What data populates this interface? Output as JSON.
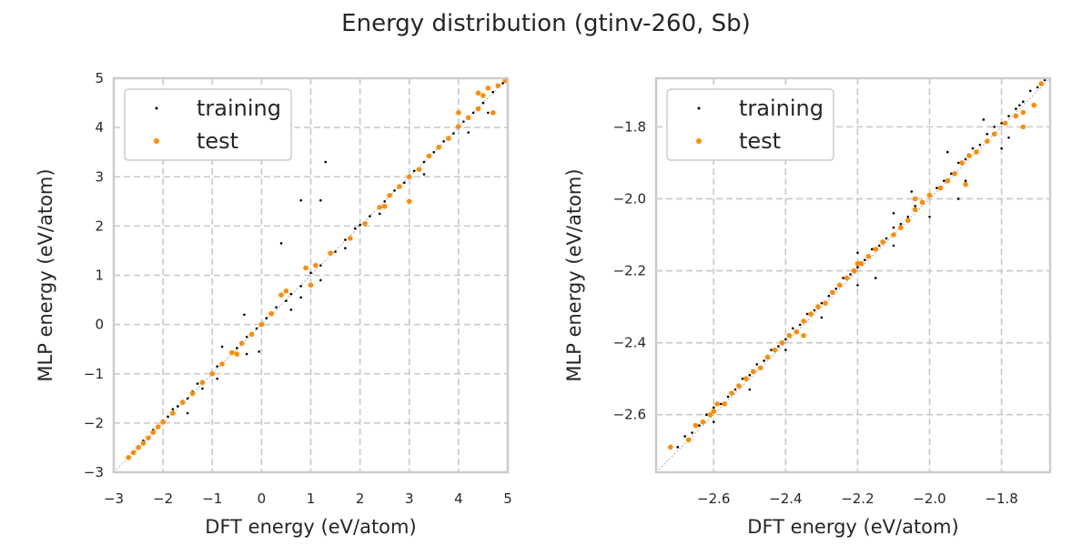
{
  "figure": {
    "title": "Energy distribution (gtinv-260, Sb)"
  },
  "colors": {
    "training": "#000000",
    "test": "#ff8c00",
    "grid": "#c8c8c8",
    "frame": "#cccccc",
    "diagonal": "#9a9a9a"
  },
  "chart_data": [
    {
      "type": "scatter",
      "xlabel": "DFT energy (eV/atom)",
      "ylabel": "MLP energy (eV/atom)",
      "xlim": [
        -3,
        5
      ],
      "ylim": [
        -3,
        5
      ],
      "xticks": [
        -3,
        -2,
        -1,
        0,
        1,
        2,
        3,
        4,
        5
      ],
      "yticks": [
        -3,
        -2,
        -1,
        0,
        1,
        2,
        3,
        4,
        5
      ],
      "tick_labels_x": [
        "−3",
        "−2",
        "−1",
        "0",
        "1",
        "2",
        "3",
        "4",
        "5"
      ],
      "tick_labels_y": [
        "−3",
        "−2",
        "−1",
        "0",
        "1",
        "2",
        "3",
        "4",
        "5"
      ],
      "grid": true,
      "legend": "top-left",
      "series": [
        {
          "name": "training",
          "points": [
            [
              -2.7,
              -2.69
            ],
            [
              -2.6,
              -2.58
            ],
            [
              -2.5,
              -2.47
            ],
            [
              -2.4,
              -2.36
            ],
            [
              -2.3,
              -2.28
            ],
            [
              -2.2,
              -2.14
            ],
            [
              -2.1,
              -2.06
            ],
            [
              -2.0,
              -1.95
            ],
            [
              -1.9,
              -1.87
            ],
            [
              -1.8,
              -1.72
            ],
            [
              -1.7,
              -1.66
            ],
            [
              -1.6,
              -1.55
            ],
            [
              -1.5,
              -1.5
            ],
            [
              -1.4,
              -1.36
            ],
            [
              -1.3,
              -1.2
            ],
            [
              -1.2,
              -1.15
            ],
            [
              -1.0,
              -0.98
            ],
            [
              -0.9,
              -0.85
            ],
            [
              -0.8,
              -0.78
            ],
            [
              -0.6,
              -0.55
            ],
            [
              -0.5,
              -0.48
            ],
            [
              -0.3,
              -0.25
            ],
            [
              -0.2,
              -0.18
            ],
            [
              -0.1,
              -0.08
            ],
            [
              0.0,
              0.02
            ],
            [
              0.1,
              0.13
            ],
            [
              0.2,
              0.22
            ],
            [
              0.3,
              0.35
            ],
            [
              0.5,
              0.48
            ],
            [
              0.6,
              0.62
            ],
            [
              0.8,
              0.78
            ],
            [
              1.0,
              1.05
            ],
            [
              1.2,
              1.2
            ],
            [
              1.5,
              1.48
            ],
            [
              1.7,
              1.72
            ],
            [
              1.9,
              1.95
            ],
            [
              2.0,
              2.02
            ],
            [
              2.2,
              2.2
            ],
            [
              2.5,
              2.5
            ],
            [
              2.7,
              2.72
            ],
            [
              2.9,
              2.88
            ],
            [
              3.1,
              3.12
            ],
            [
              3.3,
              3.3
            ],
            [
              3.5,
              3.5
            ],
            [
              3.7,
              3.72
            ],
            [
              3.9,
              3.88
            ],
            [
              4.1,
              4.12
            ],
            [
              4.3,
              4.3
            ],
            [
              4.5,
              4.5
            ],
            [
              4.7,
              4.72
            ],
            [
              4.9,
              4.9
            ],
            [
              -1.5,
              -1.8
            ],
            [
              -0.9,
              -1.1
            ],
            [
              -0.3,
              -0.6
            ],
            [
              0.8,
              0.55
            ],
            [
              1.2,
              0.9
            ],
            [
              -0.05,
              -0.55
            ],
            [
              0.4,
              1.65
            ],
            [
              0.8,
              2.52
            ],
            [
              1.2,
              2.52
            ],
            [
              1.3,
              3.3
            ],
            [
              -0.35,
              0.2
            ],
            [
              -0.8,
              -0.45
            ],
            [
              1.7,
              1.55
            ],
            [
              2.4,
              2.25
            ],
            [
              3.3,
              3.05
            ],
            [
              4.2,
              3.9
            ],
            [
              4.6,
              4.3
            ],
            [
              -1.2,
              -1.3
            ],
            [
              0.6,
              0.3
            ]
          ]
        },
        {
          "name": "test",
          "points": [
            [
              -2.7,
              -2.7
            ],
            [
              -2.6,
              -2.6
            ],
            [
              -2.5,
              -2.5
            ],
            [
              -2.4,
              -2.41
            ],
            [
              -2.3,
              -2.3
            ],
            [
              -2.2,
              -2.19
            ],
            [
              -2.1,
              -2.08
            ],
            [
              -2.0,
              -1.98
            ],
            [
              -1.8,
              -1.8
            ],
            [
              -1.6,
              -1.58
            ],
            [
              -1.4,
              -1.4
            ],
            [
              -1.2,
              -1.18
            ],
            [
              -1.0,
              -1.0
            ],
            [
              -0.8,
              -0.8
            ],
            [
              -0.6,
              -0.57
            ],
            [
              -0.4,
              -0.38
            ],
            [
              -0.2,
              -0.2
            ],
            [
              0.0,
              0.0
            ],
            [
              0.2,
              0.22
            ],
            [
              0.4,
              0.6
            ],
            [
              0.5,
              0.68
            ],
            [
              0.9,
              1.15
            ],
            [
              1.1,
              1.2
            ],
            [
              1.4,
              1.45
            ],
            [
              1.8,
              1.75
            ],
            [
              2.1,
              2.05
            ],
            [
              2.4,
              2.38
            ],
            [
              2.6,
              2.62
            ],
            [
              2.8,
              2.8
            ],
            [
              3.0,
              3.0
            ],
            [
              3.2,
              3.15
            ],
            [
              3.4,
              3.42
            ],
            [
              3.6,
              3.6
            ],
            [
              3.8,
              3.78
            ],
            [
              4.0,
              4.02
            ],
            [
              4.0,
              4.3
            ],
            [
              4.2,
              4.2
            ],
            [
              4.4,
              4.38
            ],
            [
              4.5,
              4.65
            ],
            [
              4.6,
              4.8
            ],
            [
              4.7,
              4.3
            ],
            [
              4.8,
              4.85
            ],
            [
              4.95,
              4.95
            ],
            [
              -0.5,
              -0.6
            ],
            [
              1.0,
              0.8
            ],
            [
              2.5,
              2.4
            ],
            [
              3.0,
              2.5
            ],
            [
              4.4,
              4.7
            ]
          ]
        }
      ]
    },
    {
      "type": "scatter",
      "xlabel": "DFT energy (eV/atom)",
      "ylabel": "MLP energy (eV/atom)",
      "xlim": [
        -2.76,
        -1.665
      ],
      "ylim": [
        -2.76,
        -1.665
      ],
      "xticks": [
        -2.6,
        -2.4,
        -2.2,
        -2.0,
        -1.8
      ],
      "yticks": [
        -2.6,
        -2.4,
        -2.2,
        -2.0,
        -1.8
      ],
      "tick_labels_x": [
        "−2.6",
        "−2.4",
        "−2.2",
        "−2.0",
        "−1.8"
      ],
      "tick_labels_y": [
        "−2.6",
        "−2.4",
        "−2.2",
        "−2.0",
        "−1.8"
      ],
      "grid": true,
      "legend": "top-left",
      "series": [
        {
          "name": "training",
          "points": [
            [
              -2.7,
              -2.69
            ],
            [
              -2.68,
              -2.66
            ],
            [
              -2.66,
              -2.65
            ],
            [
              -2.64,
              -2.63
            ],
            [
              -2.62,
              -2.6
            ],
            [
              -2.6,
              -2.58
            ],
            [
              -2.58,
              -2.57
            ],
            [
              -2.56,
              -2.55
            ],
            [
              -2.54,
              -2.53
            ],
            [
              -2.52,
              -2.5
            ],
            [
              -2.5,
              -2.49
            ],
            [
              -2.48,
              -2.46
            ],
            [
              -2.46,
              -2.45
            ],
            [
              -2.44,
              -2.42
            ],
            [
              -2.42,
              -2.41
            ],
            [
              -2.4,
              -2.39
            ],
            [
              -2.38,
              -2.36
            ],
            [
              -2.36,
              -2.35
            ],
            [
              -2.34,
              -2.32
            ],
            [
              -2.32,
              -2.31
            ],
            [
              -2.3,
              -2.29
            ],
            [
              -2.28,
              -2.27
            ],
            [
              -2.26,
              -2.25
            ],
            [
              -2.24,
              -2.22
            ],
            [
              -2.22,
              -2.21
            ],
            [
              -2.2,
              -2.19
            ],
            [
              -2.18,
              -2.17
            ],
            [
              -2.16,
              -2.14
            ],
            [
              -2.14,
              -2.13
            ],
            [
              -2.12,
              -2.11
            ],
            [
              -2.1,
              -2.08
            ],
            [
              -2.08,
              -2.07
            ],
            [
              -2.06,
              -2.05
            ],
            [
              -2.04,
              -2.02
            ],
            [
              -2.02,
              -2.01
            ],
            [
              -2.0,
              -1.99
            ],
            [
              -1.98,
              -1.97
            ],
            [
              -1.96,
              -1.95
            ],
            [
              -1.94,
              -1.93
            ],
            [
              -1.92,
              -1.9
            ],
            [
              -1.9,
              -1.89
            ],
            [
              -1.88,
              -1.86
            ],
            [
              -1.86,
              -1.85
            ],
            [
              -1.84,
              -1.82
            ],
            [
              -1.82,
              -1.8
            ],
            [
              -1.8,
              -1.79
            ],
            [
              -1.78,
              -1.77
            ],
            [
              -1.76,
              -1.75
            ],
            [
              -1.74,
              -1.73
            ],
            [
              -1.72,
              -1.7
            ],
            [
              -1.7,
              -1.69
            ],
            [
              -1.68,
              -1.67
            ],
            [
              -2.6,
              -2.62
            ],
            [
              -2.5,
              -2.53
            ],
            [
              -2.4,
              -2.42
            ],
            [
              -2.3,
              -2.33
            ],
            [
              -2.2,
              -2.24
            ],
            [
              -2.1,
              -2.13
            ],
            [
              -2.0,
              -2.05
            ],
            [
              -1.9,
              -1.95
            ],
            [
              -1.8,
              -1.86
            ],
            [
              -2.2,
              -2.15
            ],
            [
              -2.05,
              -1.98
            ],
            [
              -1.95,
              -1.87
            ],
            [
              -1.85,
              -1.78
            ],
            [
              -1.75,
              -1.74
            ],
            [
              -2.1,
              -2.04
            ],
            [
              -1.92,
              -2.0
            ],
            [
              -2.15,
              -2.22
            ],
            [
              -1.78,
              -1.83
            ]
          ]
        },
        {
          "name": "test",
          "points": [
            [
              -2.72,
              -2.69
            ],
            [
              -2.67,
              -2.67
            ],
            [
              -2.65,
              -2.63
            ],
            [
              -2.63,
              -2.62
            ],
            [
              -2.61,
              -2.6
            ],
            [
              -2.6,
              -2.59
            ],
            [
              -2.59,
              -2.57
            ],
            [
              -2.57,
              -2.57
            ],
            [
              -2.55,
              -2.54
            ],
            [
              -2.53,
              -2.52
            ],
            [
              -2.51,
              -2.5
            ],
            [
              -2.49,
              -2.48
            ],
            [
              -2.47,
              -2.47
            ],
            [
              -2.45,
              -2.44
            ],
            [
              -2.43,
              -2.42
            ],
            [
              -2.41,
              -2.4
            ],
            [
              -2.39,
              -2.38
            ],
            [
              -2.37,
              -2.37
            ],
            [
              -2.35,
              -2.34
            ],
            [
              -2.33,
              -2.32
            ],
            [
              -2.31,
              -2.3
            ],
            [
              -2.29,
              -2.29
            ],
            [
              -2.27,
              -2.26
            ],
            [
              -2.25,
              -2.24
            ],
            [
              -2.23,
              -2.22
            ],
            [
              -2.21,
              -2.2
            ],
            [
              -2.19,
              -2.18
            ],
            [
              -2.17,
              -2.16
            ],
            [
              -2.15,
              -2.14
            ],
            [
              -2.13,
              -2.12
            ],
            [
              -2.1,
              -2.1
            ],
            [
              -2.08,
              -2.08
            ],
            [
              -2.06,
              -2.06
            ],
            [
              -2.04,
              -2.03
            ],
            [
              -2.02,
              -2.01
            ],
            [
              -2.0,
              -1.99
            ],
            [
              -1.97,
              -1.97
            ],
            [
              -1.95,
              -1.95
            ],
            [
              -1.93,
              -1.93
            ],
            [
              -1.91,
              -1.9
            ],
            [
              -1.89,
              -1.88
            ],
            [
              -1.87,
              -1.87
            ],
            [
              -1.84,
              -1.84
            ],
            [
              -1.82,
              -1.82
            ],
            [
              -1.79,
              -1.79
            ],
            [
              -1.76,
              -1.77
            ],
            [
              -1.74,
              -1.76
            ],
            [
              -1.71,
              -1.74
            ],
            [
              -1.69,
              -1.68
            ],
            [
              -1.74,
              -1.8
            ],
            [
              -2.04,
              -2.0
            ],
            [
              -2.2,
              -2.18
            ],
            [
              -2.35,
              -2.38
            ],
            [
              -1.9,
              -1.96
            ]
          ]
        }
      ]
    }
  ]
}
